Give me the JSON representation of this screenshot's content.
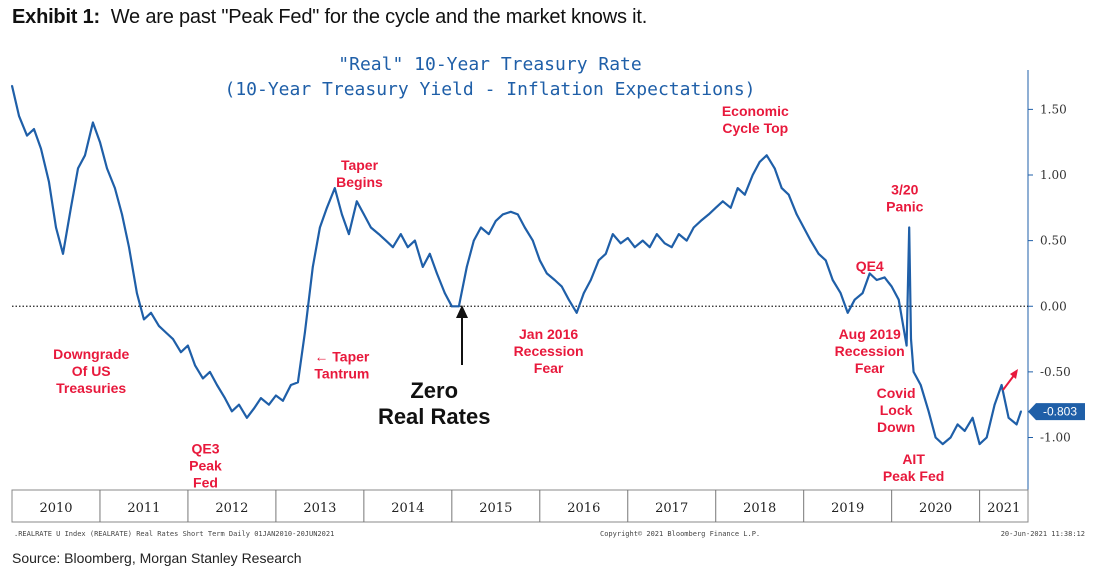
{
  "exhibit": {
    "label": "Exhibit 1:",
    "headline": "We are past \"Peak Fed\" for the cycle and the market knows it."
  },
  "source": "Source: Bloomberg, Morgan Stanley Research",
  "footer": {
    "left": ".REALRATE U Index (REALRATE) Real Rates Short Term  Daily 01JAN2010-20JUN2021",
    "center": "Copyright© 2021 Bloomberg Finance L.P.",
    "right": "20-Jun-2021 11:38:12"
  },
  "colors": {
    "series": "#1f5fa8",
    "annotation": "#e8193c",
    "title": "#1f5fa8",
    "last_tag": "#1f5fa8"
  },
  "chart_data": {
    "type": "line",
    "title": "\"Real\" 10-Year Treasury Rate",
    "subtitle": "(10-Year Treasury Yield - Inflation Expectations)",
    "xlabel": "",
    "ylabel": "",
    "x_range": [
      2010.0,
      2021.55
    ],
    "ylim": [
      -1.4,
      1.8
    ],
    "y_ticks": [
      1.5,
      1.0,
      0.5,
      0.0,
      -0.5,
      -1.0
    ],
    "y_tick_labels": [
      "1.50",
      "1.00",
      "0.50",
      "0.00",
      "-0.50",
      "-1.00"
    ],
    "x_tick_labels": [
      "2010",
      "2011",
      "2012",
      "2013",
      "2014",
      "2015",
      "2016",
      "2017",
      "2018",
      "2019",
      "2020",
      "2021"
    ],
    "zero_line": true,
    "last_value": -0.803,
    "last_value_label": "-0.803",
    "series": [
      {
        "name": "Real 10-Year Treasury Rate",
        "x": [
          2010.0,
          2010.08,
          2010.17,
          2010.25,
          2010.33,
          2010.42,
          2010.5,
          2010.58,
          2010.67,
          2010.75,
          2010.83,
          2010.92,
          2011.0,
          2011.08,
          2011.17,
          2011.25,
          2011.33,
          2011.42,
          2011.5,
          2011.58,
          2011.67,
          2011.75,
          2011.83,
          2011.92,
          2012.0,
          2012.08,
          2012.17,
          2012.25,
          2012.33,
          2012.42,
          2012.5,
          2012.58,
          2012.67,
          2012.75,
          2012.83,
          2012.92,
          2013.0,
          2013.08,
          2013.17,
          2013.25,
          2013.33,
          2013.42,
          2013.5,
          2013.58,
          2013.67,
          2013.75,
          2013.83,
          2013.92,
          2014.0,
          2014.08,
          2014.17,
          2014.25,
          2014.33,
          2014.42,
          2014.5,
          2014.58,
          2014.67,
          2014.75,
          2014.83,
          2014.92,
          2015.0,
          2015.08,
          2015.17,
          2015.25,
          2015.33,
          2015.42,
          2015.5,
          2015.58,
          2015.67,
          2015.75,
          2015.83,
          2015.92,
          2016.0,
          2016.08,
          2016.17,
          2016.25,
          2016.33,
          2016.42,
          2016.5,
          2016.58,
          2016.67,
          2016.75,
          2016.83,
          2016.92,
          2017.0,
          2017.08,
          2017.17,
          2017.25,
          2017.33,
          2017.42,
          2017.5,
          2017.58,
          2017.67,
          2017.75,
          2017.83,
          2017.92,
          2018.0,
          2018.08,
          2018.17,
          2018.25,
          2018.33,
          2018.42,
          2018.5,
          2018.58,
          2018.67,
          2018.75,
          2018.83,
          2018.92,
          2019.0,
          2019.08,
          2019.17,
          2019.25,
          2019.33,
          2019.42,
          2019.5,
          2019.58,
          2019.67,
          2019.75,
          2019.83,
          2019.92,
          2020.0,
          2020.08,
          2020.17,
          2020.2,
          2020.22,
          2020.25,
          2020.33,
          2020.42,
          2020.5,
          2020.58,
          2020.67,
          2020.75,
          2020.83,
          2020.92,
          2021.0,
          2021.08,
          2021.17,
          2021.25,
          2021.33,
          2021.42,
          2021.47
        ],
        "y": [
          1.68,
          1.45,
          1.3,
          1.35,
          1.2,
          0.95,
          0.6,
          0.4,
          0.75,
          1.05,
          1.15,
          1.4,
          1.25,
          1.05,
          0.9,
          0.7,
          0.45,
          0.1,
          -0.1,
          -0.05,
          -0.15,
          -0.2,
          -0.25,
          -0.35,
          -0.3,
          -0.45,
          -0.55,
          -0.5,
          -0.6,
          -0.7,
          -0.8,
          -0.75,
          -0.85,
          -0.78,
          -0.7,
          -0.75,
          -0.68,
          -0.72,
          -0.6,
          -0.58,
          -0.2,
          0.3,
          0.6,
          0.75,
          0.9,
          0.7,
          0.55,
          0.8,
          0.7,
          0.6,
          0.55,
          0.5,
          0.45,
          0.55,
          0.45,
          0.5,
          0.3,
          0.4,
          0.25,
          0.1,
          0.0,
          0.0,
          0.3,
          0.5,
          0.6,
          0.55,
          0.65,
          0.7,
          0.72,
          0.7,
          0.6,
          0.5,
          0.35,
          0.25,
          0.2,
          0.15,
          0.05,
          -0.05,
          0.1,
          0.2,
          0.35,
          0.4,
          0.55,
          0.48,
          0.52,
          0.45,
          0.5,
          0.45,
          0.55,
          0.48,
          0.45,
          0.55,
          0.5,
          0.6,
          0.65,
          0.7,
          0.75,
          0.8,
          0.75,
          0.9,
          0.85,
          1.0,
          1.1,
          1.15,
          1.05,
          0.9,
          0.85,
          0.7,
          0.6,
          0.5,
          0.4,
          0.35,
          0.2,
          0.1,
          -0.05,
          0.05,
          0.1,
          0.25,
          0.2,
          0.22,
          0.15,
          0.05,
          -0.3,
          0.6,
          -0.25,
          -0.5,
          -0.6,
          -0.8,
          -1.0,
          -1.05,
          -1.0,
          -0.9,
          -0.95,
          -0.85,
          -1.05,
          -1.0,
          -0.75,
          -0.6,
          -0.85,
          -0.9,
          -0.8
        ]
      }
    ],
    "annotations": [
      {
        "text": "Downgrade\nOf US\nTreasuries",
        "x": 2010.9,
        "y": -0.4
      },
      {
        "text": "QE3\nPeak\nFed",
        "x": 2012.2,
        "y": -1.12
      },
      {
        "text": "Taper\nBegins",
        "x": 2013.95,
        "y": 1.04
      },
      {
        "text": "← Taper\nTantrum",
        "x": 2013.75,
        "y": -0.42
      },
      {
        "text": "Zero\nReal Rates",
        "x": 2014.8,
        "y": -0.7
      },
      {
        "text": "Jan 2016\nRecession\nFear",
        "x": 2016.1,
        "y": -0.25
      },
      {
        "text": "Economic\nCycle Top",
        "x": 2018.45,
        "y": 1.45
      },
      {
        "text": "3/20\nPanic",
        "x": 2020.15,
        "y": 0.85
      },
      {
        "text": "QE4",
        "x": 2019.75,
        "y": 0.27
      },
      {
        "text": "Aug 2019\nRecession\nFear",
        "x": 2019.75,
        "y": -0.25
      },
      {
        "text": "Covid\nLock\nDown",
        "x": 2020.05,
        "y": -0.7
      },
      {
        "text": "AIT\nPeak Fed",
        "x": 2020.25,
        "y": -1.2
      }
    ]
  }
}
